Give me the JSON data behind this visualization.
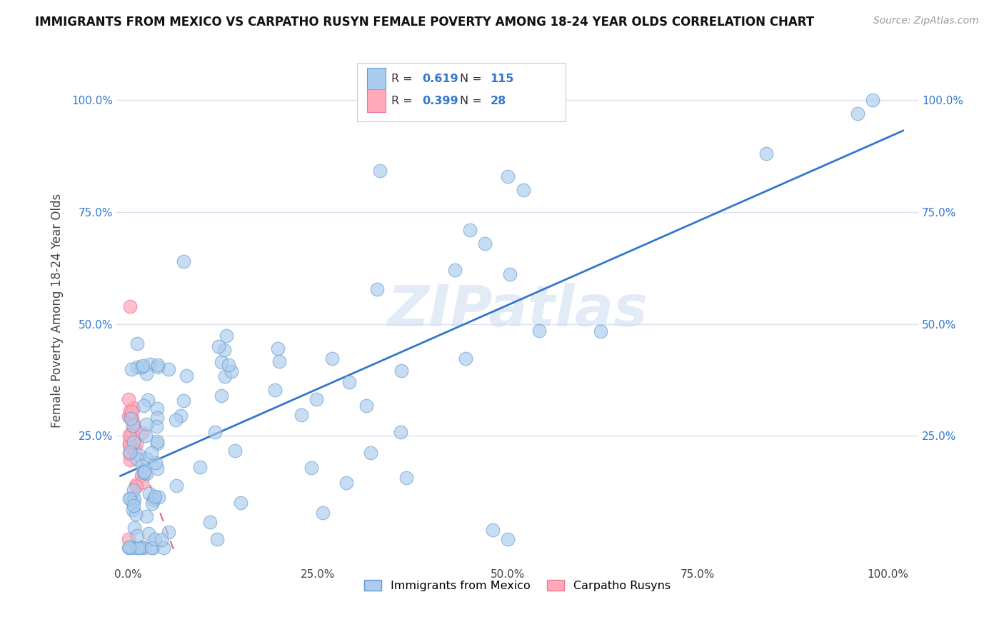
{
  "title": "IMMIGRANTS FROM MEXICO VS CARPATHO RUSYN FEMALE POVERTY AMONG 18-24 YEAR OLDS CORRELATION CHART",
  "source": "Source: ZipAtlas.com",
  "ylabel": "Female Poverty Among 18-24 Year Olds",
  "mexico_color": "#aaccee",
  "mexico_edge_color": "#6699cc",
  "carpatho_color": "#ffaabb",
  "carpatho_edge_color": "#ee7799",
  "mexico_R": 0.619,
  "mexico_N": 115,
  "carpatho_R": 0.399,
  "carpatho_N": 28,
  "mexico_line_color": "#3377cc",
  "carpatho_line_color": "#dd6688",
  "watermark": "ZIPatlas",
  "legend_label_mexico": "Immigrants from Mexico",
  "legend_label_carpatho": "Carpatho Rusyns",
  "r_n_color": "#3377cc",
  "grid_color": "#ddddee",
  "tick_color": "#3377cc",
  "label_color": "#444444",
  "title_color": "#111111"
}
